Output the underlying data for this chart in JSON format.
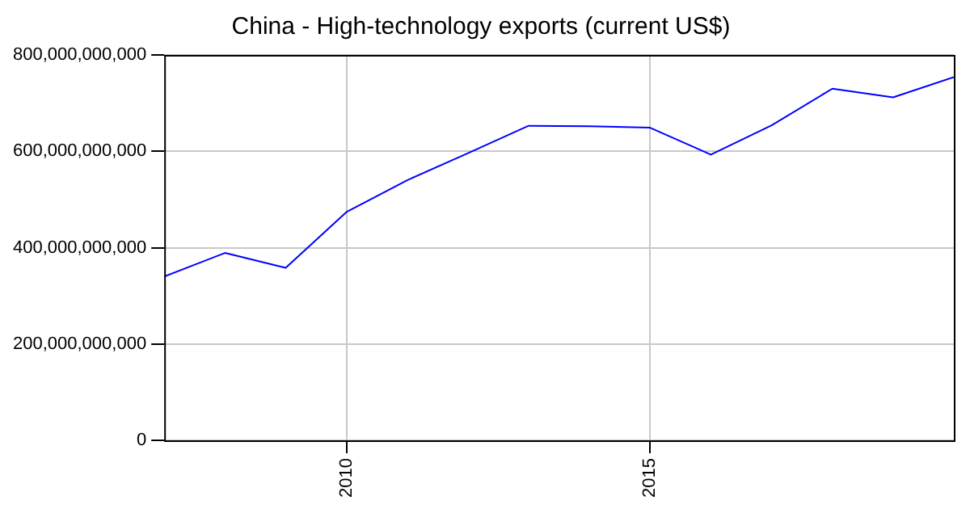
{
  "chart_data": {
    "type": "line",
    "title": "China - High-technology exports (current US$)",
    "x": [
      2007,
      2008,
      2009,
      2010,
      2011,
      2012,
      2013,
      2014,
      2015,
      2016,
      2017,
      2018,
      2019,
      2020
    ],
    "series": [
      {
        "color": "#0000ff",
        "values": [
          340000000000,
          389000000000,
          358000000000,
          474000000000,
          540000000000,
          596000000000,
          653000000000,
          652000000000,
          649000000000,
          593000000000,
          654000000000,
          730000000000,
          712000000000,
          754000000000
        ]
      }
    ],
    "xlim": [
      2007,
      2020
    ],
    "xticks": [
      2010,
      2015
    ],
    "ylim": [
      0,
      800000000000
    ],
    "yticks": [
      {
        "value": 0,
        "label": "0"
      },
      {
        "value": 200000000000,
        "label": "200,000,000,000"
      },
      {
        "value": 400000000000,
        "label": "400,000,000,000"
      },
      {
        "value": 600000000000,
        "label": "600,000,000,000"
      },
      {
        "value": 800000000000,
        "label": "800,000,000,000"
      }
    ],
    "grid": true,
    "legend": false,
    "marker": "none",
    "line_style": "solid"
  }
}
